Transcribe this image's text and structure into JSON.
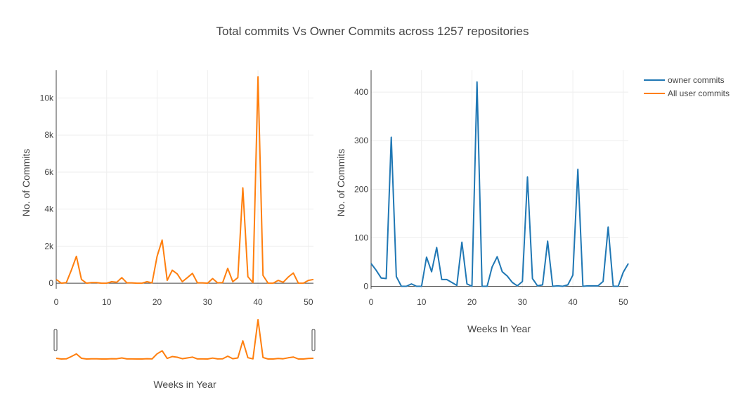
{
  "chart_data": {
    "title": "Total commits Vs Owner Commits across 1257 repositories",
    "legend": {
      "position": "top-right",
      "items": [
        {
          "name": "owner commits",
          "color": "#1f77b4"
        },
        {
          "name": "All user commits",
          "color": "#ff7f0e"
        }
      ]
    },
    "charts": [
      {
        "type": "line",
        "series_name": "All user commits",
        "color": "#ff7f0e",
        "xlabel": "Weeks in Year",
        "ylabel": "No. of Commits",
        "xlim": [
          0,
          51
        ],
        "ylim": [
          -300,
          11500
        ],
        "xticks": [
          0,
          10,
          20,
          30,
          40,
          50
        ],
        "yticks": [
          0,
          2000,
          4000,
          6000,
          8000,
          10000
        ],
        "ytick_labels": [
          "0",
          "2k",
          "4k",
          "6k",
          "8k",
          "10k"
        ],
        "grid": true,
        "range_slider": true,
        "x": [
          0,
          1,
          2,
          3,
          4,
          5,
          6,
          7,
          8,
          9,
          10,
          11,
          12,
          13,
          14,
          15,
          16,
          17,
          18,
          19,
          20,
          21,
          22,
          23,
          24,
          25,
          26,
          27,
          28,
          29,
          30,
          31,
          32,
          33,
          34,
          35,
          36,
          37,
          38,
          39,
          40,
          41,
          42,
          43,
          44,
          45,
          46,
          47,
          48,
          49,
          50,
          51
        ],
        "y": [
          200,
          0,
          30,
          700,
          1450,
          200,
          0,
          30,
          30,
          0,
          0,
          80,
          50,
          300,
          20,
          20,
          0,
          0,
          80,
          20,
          1450,
          2330,
          150,
          700,
          500,
          80,
          300,
          530,
          20,
          20,
          0,
          250,
          20,
          30,
          800,
          80,
          300,
          5150,
          350,
          30,
          11150,
          420,
          0,
          0,
          150,
          50,
          330,
          550,
          0,
          0,
          150,
          200
        ]
      },
      {
        "type": "line",
        "series_name": "owner commits",
        "color": "#1f77b4",
        "xlabel": "Weeks In Year",
        "ylabel": "No. of Commits",
        "xlim": [
          0,
          51
        ],
        "ylim": [
          -5,
          445
        ],
        "xticks": [
          0,
          10,
          20,
          30,
          40,
          50
        ],
        "yticks": [
          0,
          100,
          200,
          300,
          400
        ],
        "ytick_labels": [
          "0",
          "100",
          "200",
          "300",
          "400"
        ],
        "grid": true,
        "x": [
          0,
          1,
          2,
          3,
          4,
          5,
          6,
          7,
          8,
          9,
          10,
          11,
          12,
          13,
          14,
          15,
          16,
          17,
          18,
          19,
          20,
          21,
          22,
          23,
          24,
          25,
          26,
          27,
          28,
          29,
          30,
          31,
          32,
          33,
          34,
          35,
          36,
          37,
          38,
          39,
          40,
          41,
          42,
          43,
          44,
          45,
          46,
          47,
          48,
          49,
          50,
          51
        ],
        "y": [
          47,
          33,
          17,
          16,
          307,
          20,
          0,
          0,
          5,
          0,
          0,
          60,
          30,
          80,
          14,
          14,
          8,
          2,
          91,
          5,
          0,
          421,
          0,
          0,
          40,
          61,
          30,
          21,
          8,
          1,
          10,
          225,
          16,
          1,
          3,
          93,
          0,
          1,
          0,
          3,
          23,
          241,
          0,
          1,
          1,
          1,
          10,
          122,
          0,
          0,
          29,
          47
        ]
      }
    ]
  }
}
